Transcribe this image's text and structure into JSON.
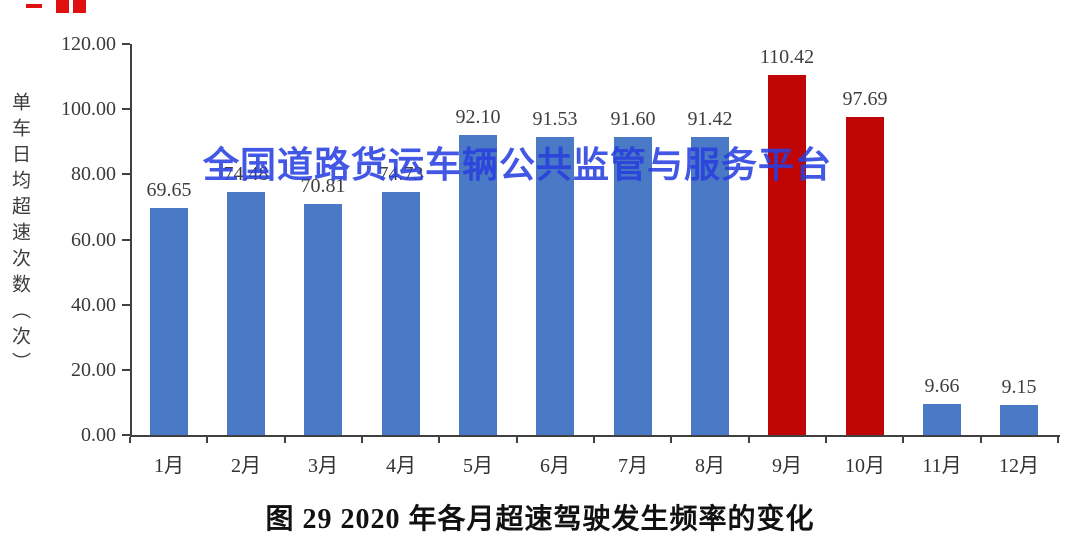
{
  "watermark": {
    "text": "全国道路货运车辆公共监管与服务平台",
    "color": "#2840E0"
  },
  "caption": "图 29 2020 年各月超速驾驶发生频率的变化",
  "decor": {
    "red_fragment_color": "#e01010",
    "axis_color": "#404040"
  },
  "chart_data": {
    "type": "bar",
    "title": "图 29 2020 年各月超速驾驶发生频率的变化",
    "xlabel": "",
    "ylabel": "单车日均超速次数（次）",
    "ylim": [
      0,
      120
    ],
    "yticks": [
      "0.00",
      "20.00",
      "40.00",
      "60.00",
      "80.00",
      "100.00",
      "120.00"
    ],
    "grid": false,
    "legend": null,
    "categories": [
      "1月",
      "2月",
      "3月",
      "4月",
      "5月",
      "6月",
      "7月",
      "8月",
      "9月",
      "10月",
      "11月",
      "12月"
    ],
    "values": [
      69.65,
      74.48,
      70.81,
      74.73,
      92.1,
      91.53,
      91.6,
      91.42,
      110.42,
      97.69,
      9.66,
      9.15
    ],
    "value_labels": [
      "69.65",
      "74.48",
      "70.81",
      "74.73",
      "92.10",
      "91.53",
      "91.60",
      "91.42",
      "110.42",
      "97.69",
      "9.66",
      "9.15"
    ],
    "bar_color_names": [
      "blue",
      "blue",
      "blue",
      "blue",
      "blue",
      "blue",
      "blue",
      "blue",
      "red",
      "red",
      "blue",
      "blue"
    ],
    "colors": {
      "blue": "#4A79C5",
      "red": "#C00505"
    }
  }
}
